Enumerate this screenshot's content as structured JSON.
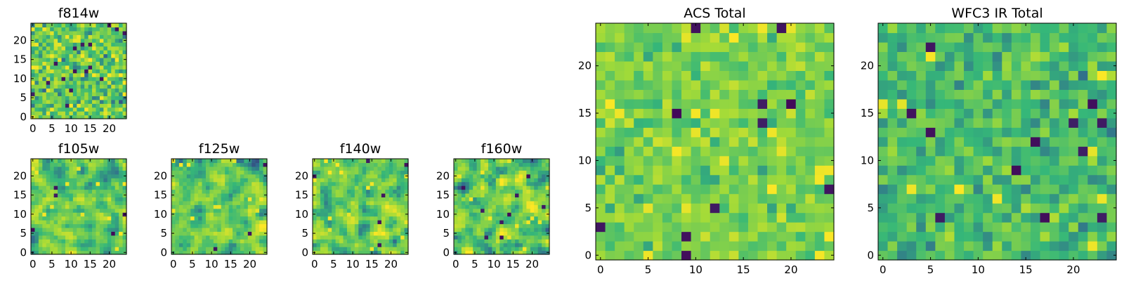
{
  "colormap": [
    "#440154",
    "#31688e",
    "#35b779",
    "#a0da39",
    "#fde725"
  ],
  "chart_data": [
    {
      "id": "f814w",
      "type": "heatmap",
      "title": "f814w",
      "grid_size": 25,
      "xlim": [
        -0.5,
        24.5
      ],
      "ylim": [
        -0.5,
        24.5
      ],
      "xticks": [
        0,
        5,
        10,
        15,
        20
      ],
      "yticks": [
        0,
        5,
        10,
        15,
        20
      ],
      "seed": 11,
      "smoothing": 0,
      "spread": 0.18,
      "n_dark": 16,
      "n_bright": 30,
      "values_note": ""
    },
    {
      "id": "f105w",
      "type": "heatmap",
      "title": "f105w",
      "grid_size": 25,
      "xlim": [
        -0.5,
        24.5
      ],
      "ylim": [
        -0.5,
        24.5
      ],
      "xticks": [
        0,
        5,
        10,
        15,
        20
      ],
      "yticks": [
        0,
        5,
        10,
        15,
        20
      ],
      "seed": 23,
      "smoothing": 1,
      "spread": 0.2,
      "n_dark": 5,
      "n_bright": 12
    },
    {
      "id": "f125w",
      "type": "heatmap",
      "title": "f125w",
      "grid_size": 25,
      "xlim": [
        -0.5,
        24.5
      ],
      "ylim": [
        -0.5,
        24.5
      ],
      "xticks": [
        0,
        5,
        10,
        15,
        20
      ],
      "yticks": [
        0,
        5,
        10,
        15,
        20
      ],
      "seed": 37,
      "smoothing": 1,
      "spread": 0.2,
      "n_dark": 3,
      "n_bright": 12
    },
    {
      "id": "f140w",
      "type": "heatmap",
      "title": "f140w",
      "grid_size": 25,
      "xlim": [
        -0.5,
        24.5
      ],
      "ylim": [
        -0.5,
        24.5
      ],
      "xticks": [
        0,
        5,
        10,
        15,
        20
      ],
      "yticks": [
        0,
        5,
        10,
        15,
        20
      ],
      "seed": 41,
      "smoothing": 1,
      "spread": 0.22,
      "n_dark": 6,
      "n_bright": 14
    },
    {
      "id": "f160w",
      "type": "heatmap",
      "title": "f160w",
      "grid_size": 25,
      "xlim": [
        -0.5,
        24.5
      ],
      "ylim": [
        -0.5,
        24.5
      ],
      "xticks": [
        0,
        5,
        10,
        15,
        20
      ],
      "yticks": [
        0,
        5,
        10,
        15,
        20
      ],
      "seed": 53,
      "smoothing": 1,
      "spread": 0.22,
      "n_dark": 8,
      "n_bright": 14
    },
    {
      "id": "acs_total",
      "type": "heatmap",
      "title": "ACS Total",
      "grid_size": 25,
      "xlim": [
        -0.5,
        24.5
      ],
      "ylim": [
        -0.5,
        24.5
      ],
      "xticks": [
        0,
        5,
        10,
        15,
        20
      ],
      "yticks": [
        0,
        5,
        10,
        15,
        20
      ],
      "seed": 67,
      "smoothing": 0,
      "spread": 0.12,
      "center": 0.66,
      "n_dark": 12,
      "n_bright": 22
    },
    {
      "id": "wfc3_total",
      "type": "heatmap",
      "title": "WFC3 IR Total",
      "grid_size": 25,
      "xlim": [
        -0.5,
        24.5
      ],
      "ylim": [
        -0.5,
        24.5
      ],
      "xticks": [
        0,
        5,
        10,
        15,
        20
      ],
      "yticks": [
        0,
        5,
        10,
        15,
        20
      ],
      "seed": 79,
      "smoothing": 0,
      "spread": 0.13,
      "center": 0.55,
      "n_dark": 12,
      "n_bright": 10
    }
  ]
}
